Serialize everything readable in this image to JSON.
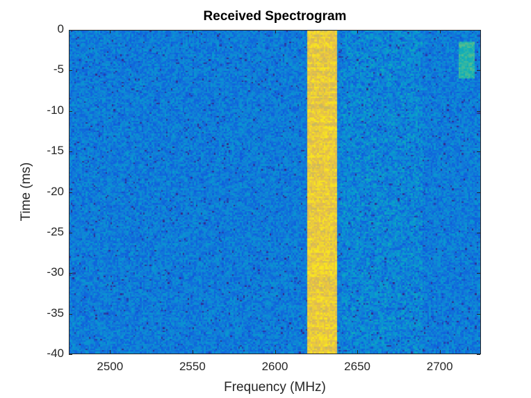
{
  "chart_data": {
    "type": "heatmap",
    "title": "Received Spectrogram",
    "xlabel": "Frequency (MHz)",
    "ylabel": "Time (ms)",
    "xlim": [
      2475,
      2725
    ],
    "ylim": [
      -40,
      0
    ],
    "xticks": [
      2500,
      2550,
      2600,
      2650,
      2700
    ],
    "yticks": [
      0,
      -5,
      -10,
      -15,
      -20,
      -25,
      -30,
      -35,
      -40
    ],
    "colormap": "parula",
    "background_level": 0.25,
    "signals": [
      {
        "name": "strong band",
        "f_start": 2620,
        "f_end": 2638,
        "t_start": -40,
        "t_end": 0,
        "level": 0.88
      },
      {
        "name": "burst",
        "f_start": 2712,
        "f_end": 2722,
        "t_start": -6,
        "t_end": -1.5,
        "level": 0.5
      },
      {
        "name": "weak emissions",
        "f_start": 2640,
        "f_end": 2690,
        "t_start": -40,
        "t_end": 0,
        "level": 0.38
      }
    ]
  }
}
